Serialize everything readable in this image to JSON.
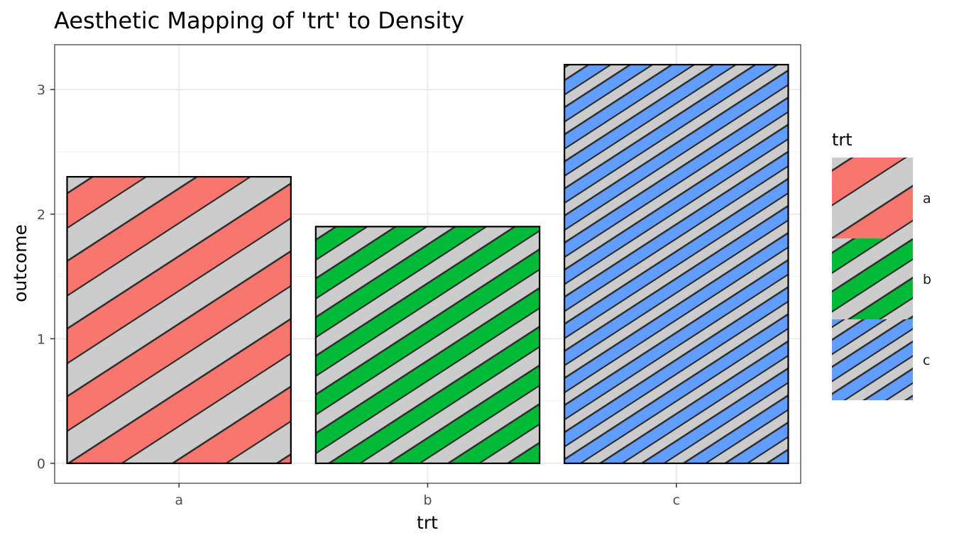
{
  "chart_data": {
    "type": "bar",
    "title": "Aesthetic Mapping of 'trt' to Density",
    "xlabel": "trt",
    "ylabel": "outcome",
    "categories": [
      "a",
      "b",
      "c"
    ],
    "values": [
      2.3,
      1.9,
      3.2
    ],
    "ylim": [
      -0.16,
      3.36
    ],
    "yticks": [
      0,
      1,
      2,
      3
    ],
    "grid": true,
    "pattern": "stripe",
    "pattern_density": [
      0.2,
      0.35,
      0.5
    ],
    "fill_colors": [
      "#F8766D",
      "#00BA38",
      "#619CFF"
    ],
    "stripe_color": "#cccccc",
    "legend": {
      "title": "trt",
      "placement": "right",
      "entries": [
        "a",
        "b",
        "c"
      ]
    }
  }
}
